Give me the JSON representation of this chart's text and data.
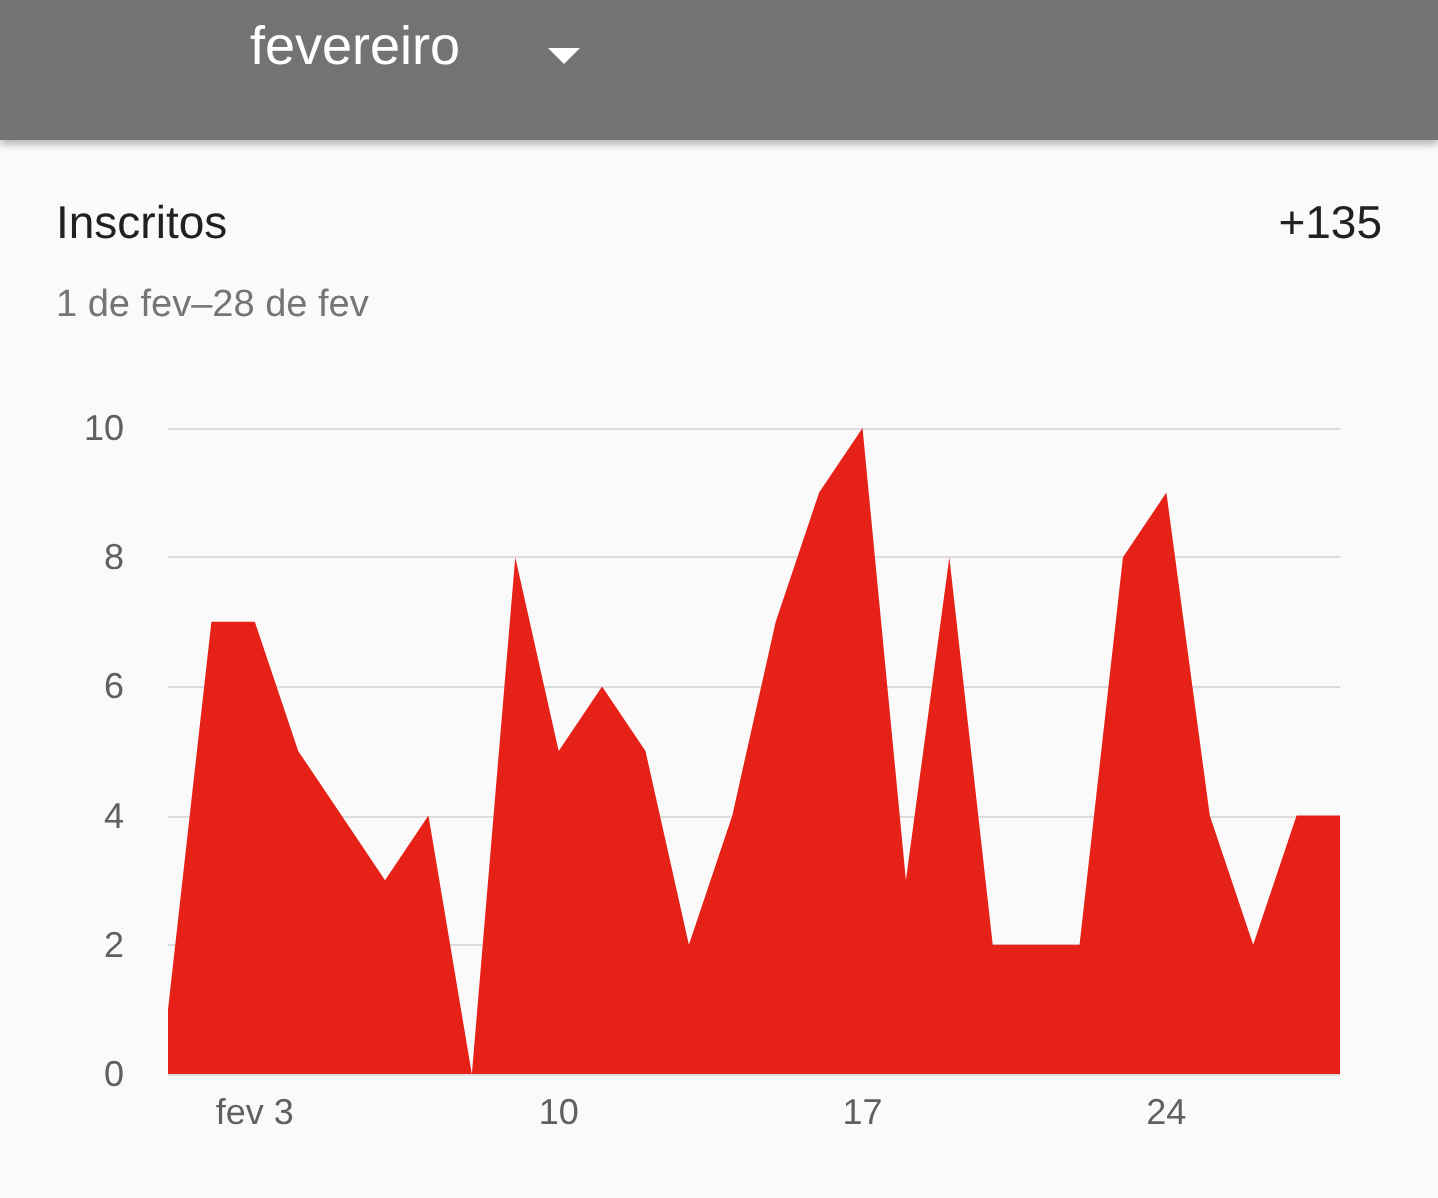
{
  "chart_data": {
    "type": "area",
    "title": "Inscritos",
    "subtitle": "1 de fev–28 de fev",
    "annotations": [
      "fevereiro",
      "+135"
    ],
    "categories": [
      null,
      null,
      "fev 3",
      null,
      null,
      null,
      null,
      null,
      null,
      "10",
      null,
      null,
      null,
      null,
      null,
      null,
      "17",
      null,
      null,
      null,
      null,
      null,
      null,
      "24",
      null,
      null,
      null,
      null
    ],
    "values": [
      1,
      7,
      7,
      5,
      4,
      3,
      4,
      0,
      8,
      5,
      6,
      5,
      2,
      4,
      7,
      9,
      10,
      3,
      8,
      2,
      2,
      2,
      8,
      9,
      4,
      2,
      4,
      4
    ],
    "color": "#e62117",
    "ylim": [
      0,
      10
    ],
    "yticks": [
      0,
      2,
      4,
      6,
      8,
      10
    ],
    "grid": "y"
  }
}
